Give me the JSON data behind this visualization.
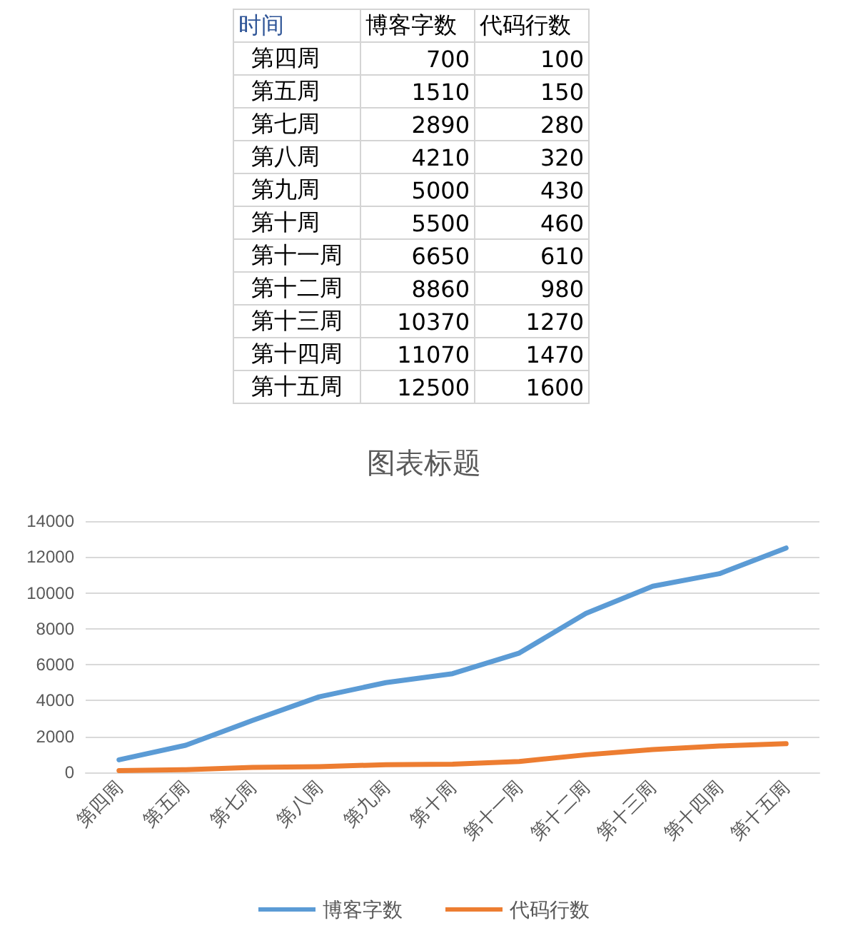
{
  "chart_data": [
    {
      "type": "other",
      "annotations": [
        "时间"
      ],
      "data_labels": true,
      "categories": [
        "第四周",
        "第五周",
        "第七周",
        "第八周",
        "第九周",
        "第十周",
        "第十一周",
        "第十二周",
        "第十三周",
        "第十四周",
        "第十五周"
      ],
      "series": [
        {
          "name": "博客字数",
          "values": [
            700,
            1510,
            2890,
            4210,
            5000,
            5500,
            6650,
            8860,
            10370,
            11070,
            12500
          ]
        },
        {
          "name": "代码行数",
          "values": [
            100,
            150,
            280,
            320,
            430,
            460,
            610,
            980,
            1270,
            1470,
            1600
          ]
        }
      ]
    },
    {
      "type": "line",
      "title": "图表标题",
      "categories": [
        "第四周",
        "第五周",
        "第七周",
        "第八周",
        "第九周",
        "第十周",
        "第十一周",
        "第十二周",
        "第十三周",
        "第十四周",
        "第十五周"
      ],
      "series": [
        {
          "name": "博客字数",
          "color": "#5b9bd5",
          "values": [
            700,
            1510,
            2890,
            4210,
            5000,
            5500,
            6650,
            8860,
            10370,
            11070,
            12500
          ]
        },
        {
          "name": "代码行数",
          "color": "#ed7d31",
          "values": [
            100,
            150,
            280,
            320,
            430,
            460,
            610,
            980,
            1270,
            1470,
            1600
          ]
        }
      ],
      "ylim": [
        0,
        14000
      ],
      "yticks": [
        0,
        2000,
        4000,
        6000,
        8000,
        10000,
        12000,
        14000
      ],
      "grid": "y",
      "legend": "bottom",
      "marker": "none",
      "line_style": "solid"
    }
  ]
}
